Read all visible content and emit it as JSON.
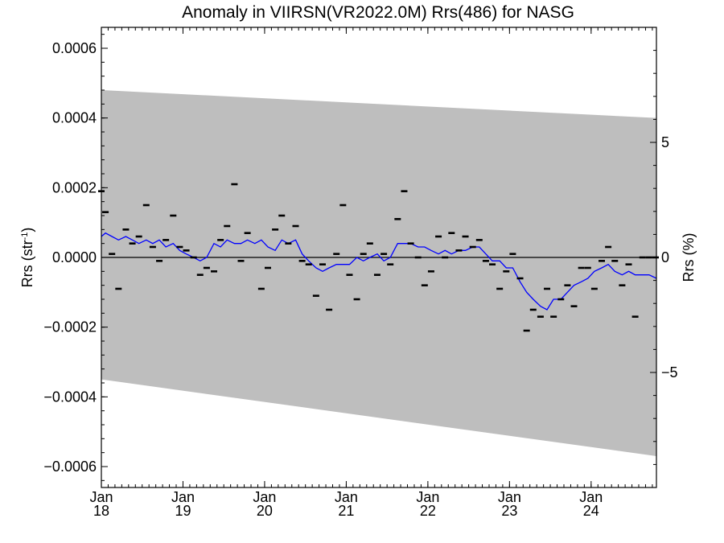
{
  "chart_data": {
    "type": "scatter",
    "title": "Anomaly in VIIRSN(VR2022.0M) Rrs(486) for NASG",
    "ylabel_left": "Rrs (str",
    "ylabel_left_sup": "-1",
    "ylabel_left_end": ")",
    "ylabel_right": "Rrs (%)",
    "ylim": [
      -0.00066,
      0.00066
    ],
    "y2lim": [
      -10.0,
      10.0
    ],
    "xlim": [
      2018.0,
      2024.8
    ],
    "yticks": [
      {
        "value": 0.0006,
        "label": "0.0006"
      },
      {
        "value": 0.0004,
        "label": "0.0004"
      },
      {
        "value": 0.0002,
        "label": "0.0002"
      },
      {
        "value": 0.0,
        "label": "0.0000"
      },
      {
        "value": -0.0002,
        "label": "−0.0002"
      },
      {
        "value": -0.0004,
        "label": "−0.0004"
      },
      {
        "value": -0.0006,
        "label": "−0.0006"
      }
    ],
    "y2ticks": [
      {
        "value": 5,
        "label": "5"
      },
      {
        "value": 0,
        "label": "0"
      },
      {
        "value": -5,
        "label": "−5"
      }
    ],
    "xticks": [
      {
        "value": 2018,
        "month": "Jan",
        "year": "18"
      },
      {
        "value": 2019,
        "month": "Jan",
        "year": "19"
      },
      {
        "value": 2020,
        "month": "Jan",
        "year": "20"
      },
      {
        "value": 2021,
        "month": "Jan",
        "year": "21"
      },
      {
        "value": 2022,
        "month": "Jan",
        "year": "22"
      },
      {
        "value": 2023,
        "month": "Jan",
        "year": "23"
      },
      {
        "value": 2024,
        "month": "Jan",
        "year": "24"
      }
    ],
    "band": {
      "x": [
        2018.0,
        2024.8
      ],
      "upper": [
        0.00048,
        0.0004
      ],
      "lower": [
        -0.00035,
        -0.00057
      ],
      "color": "#bebebe"
    },
    "points": {
      "x": [
        2018.0,
        2018.05,
        2018.13,
        2018.21,
        2018.3,
        2018.38,
        2018.46,
        2018.55,
        2018.63,
        2018.71,
        2018.79,
        2018.88,
        2018.96,
        2019.04,
        2019.13,
        2019.21,
        2019.29,
        2019.38,
        2019.46,
        2019.54,
        2019.63,
        2019.71,
        2019.79,
        2019.96,
        2020.04,
        2020.13,
        2020.21,
        2020.29,
        2020.38,
        2020.46,
        2020.54,
        2020.63,
        2020.71,
        2020.79,
        2020.88,
        2020.96,
        2021.04,
        2021.13,
        2021.21,
        2021.29,
        2021.38,
        2021.46,
        2021.54,
        2021.63,
        2021.71,
        2021.79,
        2021.88,
        2021.96,
        2022.04,
        2022.13,
        2022.21,
        2022.29,
        2022.38,
        2022.46,
        2022.55,
        2022.63,
        2022.71,
        2022.79,
        2022.88,
        2022.96,
        2023.04,
        2023.13,
        2023.21,
        2023.29,
        2023.38,
        2023.46,
        2023.54,
        2023.63,
        2023.71,
        2023.79,
        2023.88,
        2023.96,
        2024.04,
        2024.13,
        2024.21,
        2024.29,
        2024.38,
        2024.46,
        2024.54,
        2024.63,
        2024.71,
        2024.79
      ],
      "y": [
        0.00019,
        0.00013,
        1e-05,
        -9e-05,
        8e-05,
        4e-05,
        6e-05,
        0.00015,
        3e-05,
        -1e-05,
        5e-05,
        0.00012,
        3e-05,
        2e-05,
        0.0,
        -5e-05,
        -3e-05,
        -4e-05,
        5e-05,
        9e-05,
        0.00021,
        -1e-05,
        7e-05,
        -9e-05,
        -3e-05,
        8e-05,
        0.00012,
        4e-05,
        9e-05,
        -1e-05,
        -2e-05,
        -0.00011,
        -2e-05,
        -0.00015,
        1e-05,
        0.00015,
        -5e-05,
        -0.00012,
        1e-05,
        4e-05,
        -5e-05,
        1e-05,
        -2e-05,
        0.00011,
        0.00019,
        4e-05,
        0.0,
        -8e-05,
        -4e-05,
        6e-05,
        0.0,
        7e-05,
        2e-05,
        6e-05,
        3e-05,
        5e-05,
        -1e-05,
        -2e-05,
        -9e-05,
        -4e-05,
        1e-05,
        -6e-05,
        -0.00021,
        -0.00015,
        -0.00017,
        -9e-05,
        -0.00017,
        -0.00012,
        -8e-05,
        -0.00014,
        -3e-05,
        -3e-05,
        -9e-05,
        -1e-05,
        3e-05,
        -1e-05,
        -8e-05,
        -2e-05,
        -0.00017,
        0.0,
        0.0,
        0.0
      ],
      "color": "#000000"
    },
    "line": {
      "x": [
        2018.0,
        2018.05,
        2018.13,
        2018.21,
        2018.3,
        2018.38,
        2018.46,
        2018.55,
        2018.63,
        2018.71,
        2018.79,
        2018.88,
        2018.96,
        2019.04,
        2019.13,
        2019.21,
        2019.29,
        2019.38,
        2019.46,
        2019.54,
        2019.63,
        2019.71,
        2019.79,
        2019.88,
        2019.96,
        2020.04,
        2020.13,
        2020.21,
        2020.29,
        2020.38,
        2020.46,
        2020.54,
        2020.63,
        2020.71,
        2020.79,
        2020.88,
        2020.96,
        2021.04,
        2021.13,
        2021.21,
        2021.29,
        2021.38,
        2021.46,
        2021.54,
        2021.63,
        2021.71,
        2021.79,
        2021.88,
        2021.96,
        2022.04,
        2022.13,
        2022.21,
        2022.29,
        2022.38,
        2022.46,
        2022.55,
        2022.63,
        2022.71,
        2022.79,
        2022.88,
        2022.96,
        2023.04,
        2023.13,
        2023.21,
        2023.29,
        2023.38,
        2023.46,
        2023.54,
        2023.63,
        2023.71,
        2023.79,
        2023.88,
        2023.96,
        2024.04,
        2024.13,
        2024.21,
        2024.29,
        2024.38,
        2024.46,
        2024.54,
        2024.63,
        2024.71,
        2024.8
      ],
      "y": [
        6e-05,
        7e-05,
        6e-05,
        5e-05,
        6e-05,
        5e-05,
        4e-05,
        5e-05,
        4e-05,
        5e-05,
        3e-05,
        4e-05,
        2e-05,
        1e-05,
        0.0,
        -1e-05,
        0.0,
        4e-05,
        3e-05,
        5e-05,
        4e-05,
        4e-05,
        5e-05,
        4e-05,
        5e-05,
        3e-05,
        2e-05,
        5e-05,
        4e-05,
        5e-05,
        1e-05,
        -1e-05,
        -3e-05,
        -4e-05,
        -3e-05,
        -2e-05,
        -2e-05,
        -2e-05,
        0.0,
        -1e-05,
        0.0,
        1e-05,
        -1e-05,
        0.0,
        4e-05,
        4e-05,
        4e-05,
        3e-05,
        3e-05,
        2e-05,
        1e-05,
        2e-05,
        1e-05,
        2e-05,
        2e-05,
        3e-05,
        3e-05,
        1e-05,
        -1e-05,
        -1e-05,
        -3e-05,
        -3e-05,
        -7e-05,
        -0.0001,
        -0.00012,
        -0.00014,
        -0.00015,
        -0.00012,
        -0.00012,
        -0.0001,
        -8e-05,
        -7e-05,
        -6e-05,
        -4e-05,
        -3e-05,
        -2e-05,
        -4e-05,
        -5e-05,
        -4e-05,
        -5e-05,
        -5e-05,
        -5e-05,
        -6e-05
      ],
      "color": "#0000ff"
    },
    "grid": false
  }
}
